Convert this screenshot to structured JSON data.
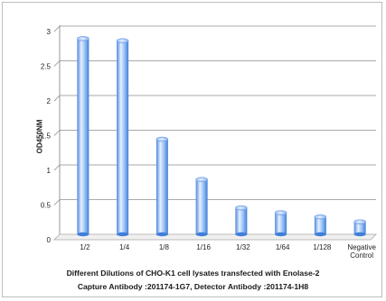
{
  "chart_data": {
    "type": "bar",
    "categories": [
      "1/2",
      "1/4",
      "1/8",
      "1/16",
      "1/32",
      "1/64",
      "1/128",
      "Negative Control"
    ],
    "values": [
      2.82,
      2.79,
      1.37,
      0.79,
      0.38,
      0.31,
      0.25,
      0.18
    ],
    "ylabel": "OD450NM",
    "xlabel_lines": [
      "Different Dilutions of CHO-K1 cell lysates transfected with Enolase-2",
      "Capture Antibody :201174-1G7,  Detector Antibody :201174-1H8"
    ],
    "ylim": [
      0,
      3
    ],
    "yticks": [
      0,
      0.5,
      1,
      1.5,
      2,
      2.5,
      3
    ],
    "grid": true,
    "colors": {
      "bar_light": "#e3efff",
      "bar_mid": "#8fbaf3",
      "bar_dark": "#3f7fd8",
      "grid": "#8c8c8c"
    }
  }
}
